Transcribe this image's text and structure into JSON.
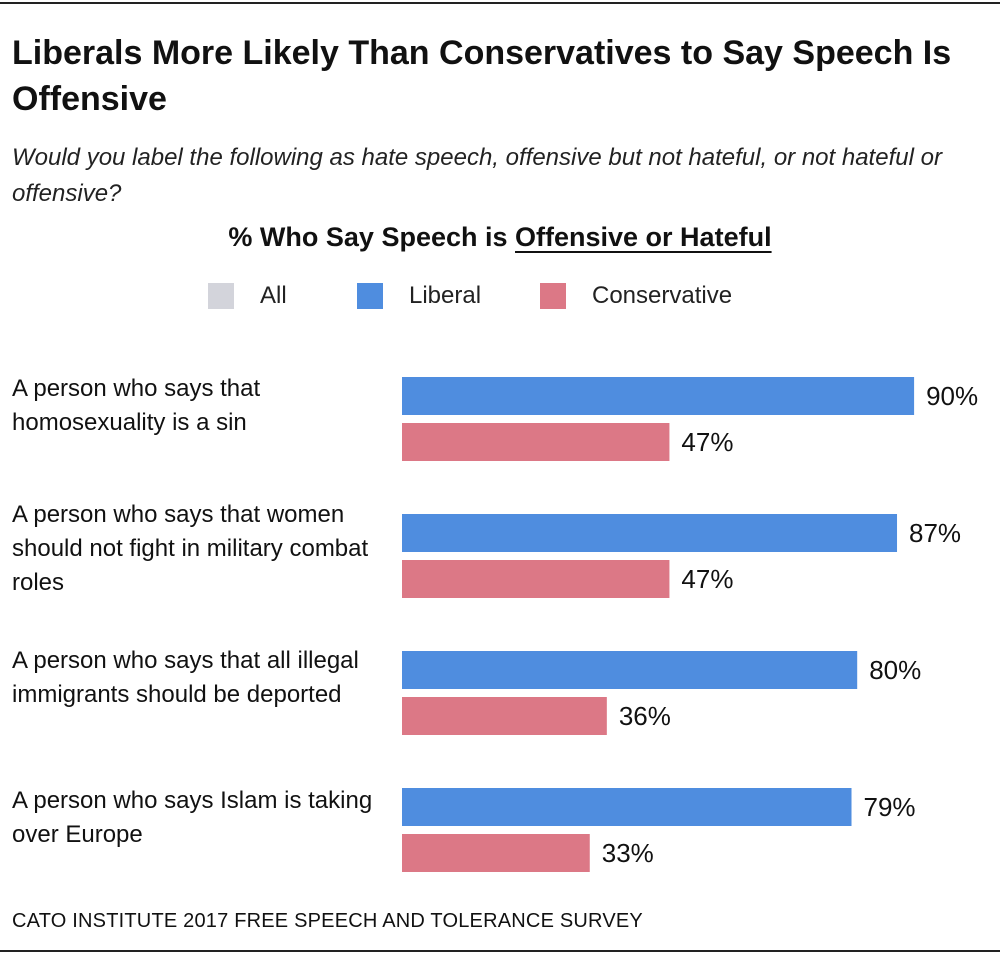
{
  "header": {
    "title": "Liberals More Likely Than Conservatives to Say Speech Is Offensive",
    "subtitle": "Would you label the following as hate speech, offensive but not hateful, or not hateful or offensive?",
    "chart_heading_prefix": "% Who Say Speech is ",
    "chart_heading_emphasis": "Offensive or Hateful"
  },
  "legend": [
    {
      "label": "All",
      "color": "#d3d4db"
    },
    {
      "label": "Liberal",
      "color": "#4f8ddf"
    },
    {
      "label": "Conservative",
      "color": "#dc7886"
    }
  ],
  "chart_data": {
    "type": "bar",
    "orientation": "horizontal",
    "title": "% Who Say Speech is Offensive or Hateful",
    "categories": [
      "A person who says that homosexuality is a sin",
      "A person who says that women should not fight in military combat roles",
      "A person who says that all illegal immigrants should be deported",
      "A person who says Islam is taking over Europe"
    ],
    "series": [
      {
        "name": "Liberal",
        "color": "#4f8ddf",
        "values": [
          90,
          87,
          80,
          79
        ],
        "labels": [
          "90%",
          "87%",
          "80%",
          "79%"
        ]
      },
      {
        "name": "Conservative",
        "color": "#dc7886",
        "values": [
          47,
          47,
          36,
          33
        ],
        "labels": [
          "47%",
          "47%",
          "36%",
          "33%"
        ]
      }
    ],
    "xlim": [
      0,
      100
    ],
    "grid": false,
    "legend_position": "top"
  },
  "footer": {
    "source": "CATO INSTITUTE 2017 FREE SPEECH AND TOLERANCE SURVEY"
  }
}
